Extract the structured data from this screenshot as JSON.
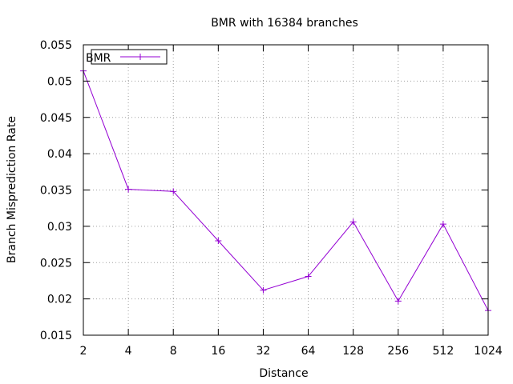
{
  "chart_data": {
    "type": "line",
    "title": "BMR with 16384 branches",
    "xlabel": "Distance",
    "ylabel": "Branch Misprediction Rate",
    "x_scale": "log2",
    "categories": [
      "2",
      "4",
      "8",
      "16",
      "32",
      "64",
      "128",
      "256",
      "512",
      "1024"
    ],
    "x": [
      2,
      4,
      8,
      16,
      32,
      64,
      128,
      256,
      512,
      1024
    ],
    "ylim": [
      0.015,
      0.055
    ],
    "yticks": [
      "0.015",
      "0.02",
      "0.025",
      "0.03",
      "0.035",
      "0.04",
      "0.045",
      "0.05",
      "0.055"
    ],
    "grid": true,
    "legend_position": "top-left",
    "series": [
      {
        "name": "BMR",
        "color": "#9400d3",
        "marker": "plus",
        "values": [
          0.0514,
          0.0351,
          0.0348,
          0.028,
          0.0212,
          0.0231,
          0.0306,
          0.0197,
          0.0303,
          0.0184
        ]
      }
    ]
  }
}
